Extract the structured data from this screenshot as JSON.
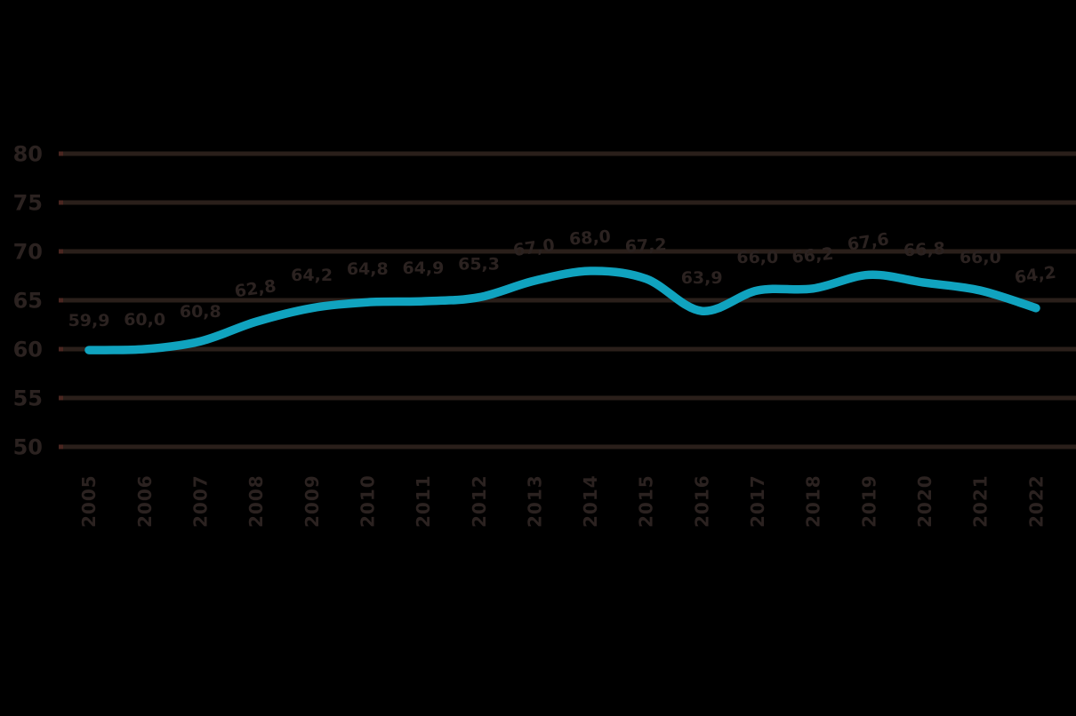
{
  "chart_data": {
    "type": "line",
    "title": "",
    "xlabel": "",
    "ylabel": "",
    "categories": [
      "2005",
      "2006",
      "2007",
      "2008",
      "2009",
      "2010",
      "2011",
      "2012",
      "2013",
      "2014",
      "2015",
      "2016",
      "2017",
      "2018",
      "2019",
      "2020",
      "2021",
      "2022"
    ],
    "series": [
      {
        "name": "employment-rate-line",
        "values": [
          59.9,
          60.0,
          60.8,
          62.8,
          64.2,
          64.8,
          64.9,
          65.3,
          67.0,
          68.0,
          67.2,
          63.9,
          66.0,
          66.2,
          67.6,
          66.8,
          66.0,
          64.2
        ],
        "point_labels": [
          "59,9",
          "60,0",
          "60,8",
          "62,8",
          "64,2",
          "64,8",
          "64,9",
          "65,3",
          "67,0",
          "68,0",
          "67,2",
          "63,9",
          "66,0",
          "66,2",
          "67,6",
          "66,8",
          "66,0",
          "64,2"
        ]
      }
    ],
    "ylim": [
      50,
      80
    ],
    "ytick_step": 5,
    "ytick_labels": [
      "50",
      "55",
      "60",
      "65",
      "70",
      "75",
      "80"
    ],
    "grid": "horizontal",
    "legend": "none",
    "decimal_separator": ",",
    "colors": {
      "background": "#000000",
      "line": "#10a3bf",
      "gridline": "#2a1f1a",
      "text": "#2b2220"
    }
  }
}
